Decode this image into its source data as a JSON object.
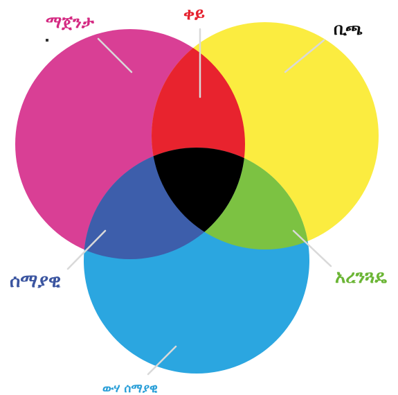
{
  "diagram": {
    "type": "cmy-subtractive-color-venn",
    "labels": {
      "magenta": "ማጀንታ",
      "red": "ቀይ",
      "yellow": "ቢጫ",
      "blue": "ሰማያዊ",
      "green": "አረንጓዴ",
      "cyan": "ውሃ ሰማያዊ"
    },
    "colors": {
      "magenta": "#d93f95",
      "yellow": "#fbec40",
      "cyan": "#2ba6e0",
      "red": "#e8232e",
      "green": "#7cc242",
      "blue": "#3d5eab",
      "black": "#000000",
      "leader_line": "#d9d9d9",
      "label_magenta": "#d42a82",
      "label_red": "#e52330",
      "label_yellow": "#111111",
      "label_blue": "#3b55a0",
      "label_green": "#6bb535",
      "label_cyan": "#2a9fd8"
    }
  }
}
